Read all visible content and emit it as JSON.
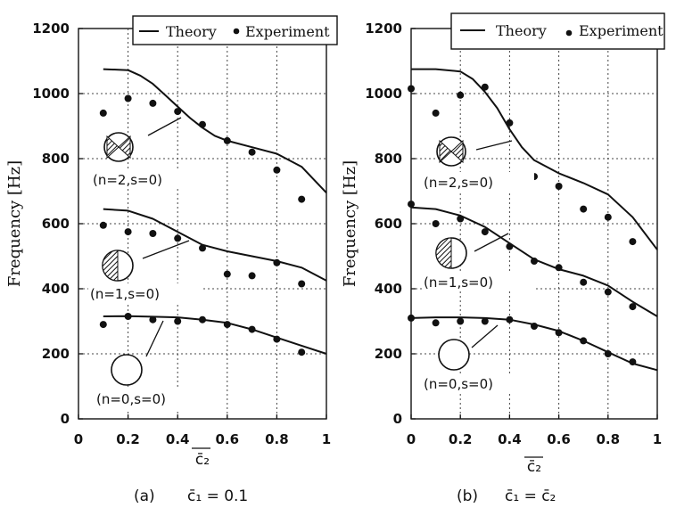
{
  "chart_data": [
    {
      "type": "line",
      "panel_label": "(a)",
      "caption": "c̄₁ = 0.1",
      "ylabel": "Frequency  [Hz]",
      "xlabel": "c̄₂",
      "xlim": [
        0,
        1
      ],
      "ylim": [
        0,
        1200
      ],
      "xticks": [
        "0",
        "0.2",
        "0.4",
        "0.6",
        "0.8",
        "1"
      ],
      "yticks": [
        "0",
        "200",
        "400",
        "600",
        "800",
        "1000",
        "1200"
      ],
      "grid": true,
      "legend": [
        "Theory",
        "Experiment"
      ],
      "legend_position": "top",
      "mode_labels": [
        "(n=2,s=0)",
        "(n=1,s=0)",
        "(n=0,s=0)"
      ],
      "series": [
        {
          "name": "Theory",
          "mode": "(n=2,s=0)",
          "kind": "line",
          "x": [
            0.1,
            0.2,
            0.25,
            0.3,
            0.35,
            0.4,
            0.45,
            0.5,
            0.55,
            0.6,
            0.7,
            0.8,
            0.9,
            1.0
          ],
          "y": [
            1075,
            1072,
            1055,
            1030,
            995,
            960,
            925,
            895,
            870,
            855,
            835,
            815,
            775,
            695
          ]
        },
        {
          "name": "Experiment",
          "mode": "(n=2,s=0)",
          "kind": "points",
          "x": [
            0.1,
            0.2,
            0.3,
            0.4,
            0.5,
            0.6,
            0.7,
            0.8,
            0.9
          ],
          "y": [
            940,
            985,
            970,
            945,
            905,
            855,
            820,
            765,
            675
          ]
        },
        {
          "name": "Theory",
          "mode": "(n=1,s=0)",
          "kind": "line",
          "x": [
            0.1,
            0.2,
            0.3,
            0.4,
            0.5,
            0.6,
            0.7,
            0.8,
            0.9,
            1.0
          ],
          "y": [
            645,
            640,
            615,
            575,
            535,
            515,
            500,
            485,
            465,
            425
          ]
        },
        {
          "name": "Experiment",
          "mode": "(n=1,s=0)",
          "kind": "points",
          "x": [
            0.1,
            0.2,
            0.3,
            0.4,
            0.5,
            0.6,
            0.7,
            0.8,
            0.9
          ],
          "y": [
            595,
            575,
            570,
            555,
            525,
            445,
            440,
            480,
            415
          ]
        },
        {
          "name": "Theory",
          "mode": "(n=0,s=0)",
          "kind": "line",
          "x": [
            0.1,
            0.2,
            0.3,
            0.4,
            0.5,
            0.6,
            0.7,
            0.8,
            0.9,
            1.0
          ],
          "y": [
            315,
            316,
            314,
            312,
            305,
            295,
            275,
            250,
            225,
            200
          ]
        },
        {
          "name": "Experiment",
          "mode": "(n=0,s=0)",
          "kind": "points",
          "x": [
            0.1,
            0.2,
            0.3,
            0.4,
            0.5,
            0.6,
            0.7,
            0.8,
            0.9
          ],
          "y": [
            290,
            315,
            305,
            300,
            305,
            290,
            275,
            245,
            205
          ]
        }
      ]
    },
    {
      "type": "line",
      "panel_label": "(b)",
      "caption": "c̄₁ = c̄₂",
      "ylabel": "Frequency  [Hz]",
      "xlabel": "c̄₂",
      "xlim": [
        0,
        1
      ],
      "ylim": [
        0,
        1200
      ],
      "xticks": [
        "0",
        "0.2",
        "0.4",
        "0.6",
        "0.8",
        "1"
      ],
      "yticks": [
        "0",
        "200",
        "400",
        "600",
        "800",
        "1000",
        "1200"
      ],
      "grid": true,
      "legend": [
        "Theory",
        "Experiment"
      ],
      "legend_position": "top",
      "mode_labels": [
        "(n=2,s=0)",
        "(n=1,s=0)",
        "(n=0,s=0)"
      ],
      "series": [
        {
          "name": "Theory",
          "mode": "(n=2,s=0)",
          "kind": "line",
          "x": [
            0.0,
            0.1,
            0.2,
            0.25,
            0.3,
            0.35,
            0.4,
            0.45,
            0.5,
            0.6,
            0.7,
            0.8,
            0.9,
            1.0
          ],
          "y": [
            1075,
            1075,
            1068,
            1045,
            1005,
            955,
            890,
            835,
            795,
            755,
            725,
            690,
            620,
            520
          ]
        },
        {
          "name": "Experiment",
          "mode": "(n=2,s=0)",
          "kind": "points",
          "x": [
            0.0,
            0.1,
            0.2,
            0.3,
            0.4,
            0.5,
            0.6,
            0.7,
            0.8,
            0.9
          ],
          "y": [
            1015,
            940,
            995,
            1020,
            910,
            745,
            715,
            645,
            620,
            545
          ]
        },
        {
          "name": "Theory",
          "mode": "(n=1,s=0)",
          "kind": "line",
          "x": [
            0.0,
            0.1,
            0.2,
            0.3,
            0.4,
            0.5,
            0.6,
            0.7,
            0.8,
            0.9,
            1.0
          ],
          "y": [
            650,
            645,
            625,
            590,
            540,
            490,
            460,
            440,
            410,
            360,
            315
          ]
        },
        {
          "name": "Experiment",
          "mode": "(n=1,s=0)",
          "kind": "points",
          "x": [
            0.0,
            0.1,
            0.2,
            0.3,
            0.4,
            0.5,
            0.6,
            0.7,
            0.8,
            0.9
          ],
          "y": [
            660,
            600,
            615,
            575,
            530,
            485,
            465,
            420,
            390,
            345
          ]
        },
        {
          "name": "Theory",
          "mode": "(n=0,s=0)",
          "kind": "line",
          "x": [
            0.0,
            0.1,
            0.2,
            0.3,
            0.4,
            0.5,
            0.6,
            0.7,
            0.8,
            0.9,
            1.0
          ],
          "y": [
            310,
            312,
            312,
            310,
            305,
            290,
            270,
            240,
            205,
            170,
            150
          ]
        },
        {
          "name": "Experiment",
          "mode": "(n=0,s=0)",
          "kind": "points",
          "x": [
            0.0,
            0.1,
            0.2,
            0.3,
            0.4,
            0.5,
            0.6,
            0.7,
            0.8,
            0.9
          ],
          "y": [
            310,
            295,
            300,
            300,
            305,
            285,
            265,
            240,
            200,
            175
          ]
        }
      ]
    }
  ]
}
